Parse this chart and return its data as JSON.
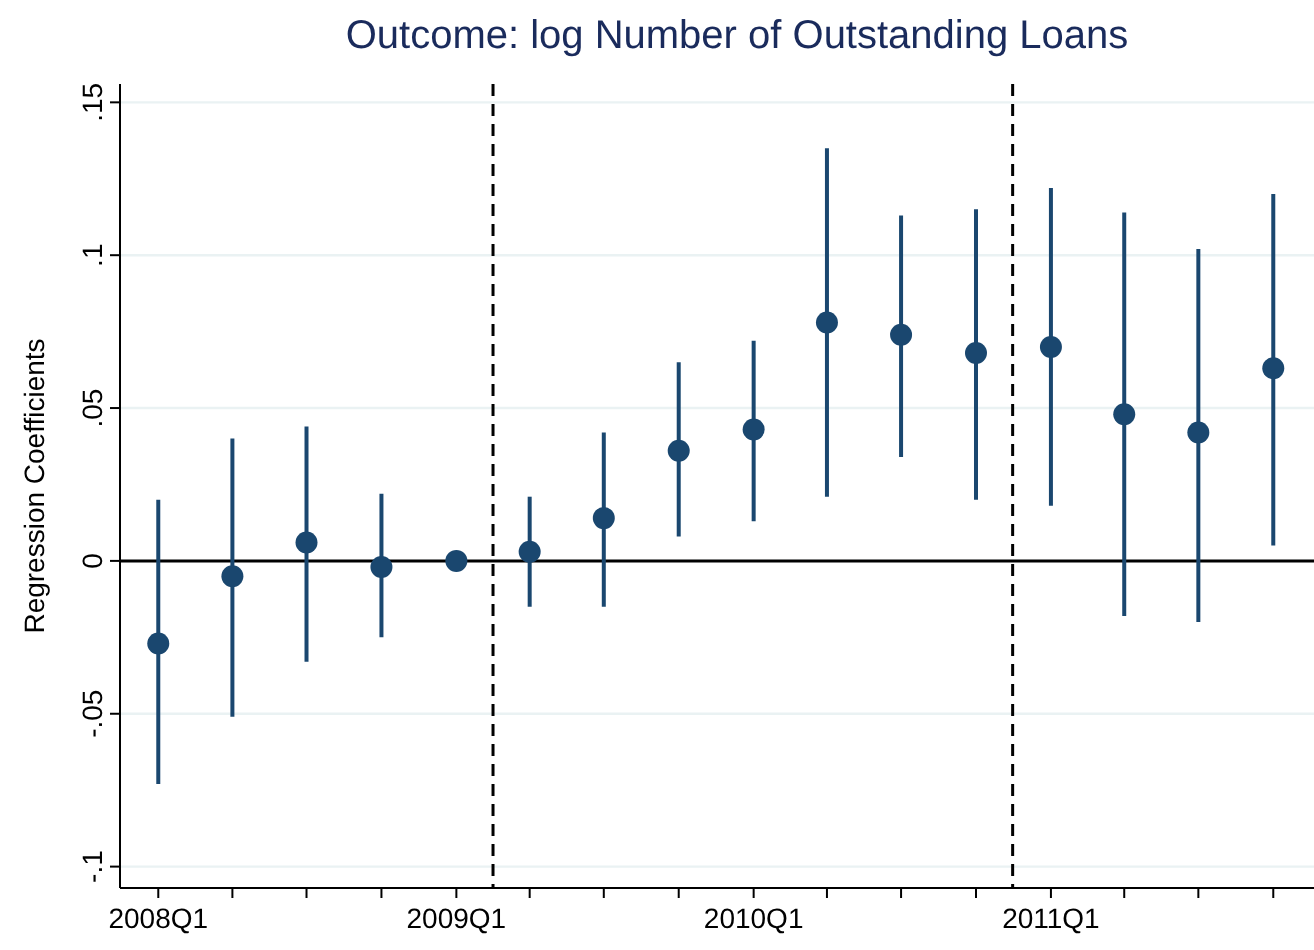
{
  "chart_data": {
    "type": "scatter",
    "title": "Outcome: log Number of Outstanding Loans",
    "ylabel": "Regression Coefficients",
    "x": [
      "2008-01-01",
      "2008-04-01",
      "2008-07-01",
      "2008-10-01",
      "2009-01-01",
      "2009-04-01",
      "2009-07-01",
      "2009-10-01",
      "2010-01-01",
      "2010-04-01",
      "2010-07-01",
      "2010-10-01",
      "2011-01-01",
      "2011-04-01",
      "2011-07-01",
      "2011-10-01"
    ],
    "series": [
      {
        "color": "#1a476f",
        "values": [
          -0.027,
          -0.005,
          0.006,
          -0.002,
          0,
          0.003,
          0.014,
          0.036,
          0.043,
          0.078,
          0.074,
          0.068,
          0.07,
          0.048,
          0.042,
          0.063
        ],
        "errors": [
          [
            -0.073,
            0.02
          ],
          [
            -0.051,
            0.04
          ],
          [
            -0.033,
            0.044
          ],
          [
            -0.025,
            0.022
          ],
          null,
          [
            -0.015,
            0.021
          ],
          [
            -0.015,
            0.042
          ],
          [
            0.008,
            0.065
          ],
          [
            0.013,
            0.072
          ],
          [
            0.021,
            0.135
          ],
          [
            0.034,
            0.113
          ],
          [
            0.02,
            0.115
          ],
          [
            0.018,
            0.122
          ],
          [
            -0.018,
            0.114
          ],
          [
            -0.02,
            0.102
          ],
          [
            0.005,
            0.12
          ]
        ]
      }
    ],
    "xlim": [
      "2007-11-15",
      "2011-11-20"
    ],
    "xticks": [
      {
        "value": "2008-01-01",
        "label": "2008Q1"
      },
      {
        "value": "2008-04-01",
        "label": null
      },
      {
        "value": "2008-07-01",
        "label": null
      },
      {
        "value": "2008-10-01",
        "label": null
      },
      {
        "value": "2009-01-01",
        "label": "2009Q1"
      },
      {
        "value": "2009-04-01",
        "label": null
      },
      {
        "value": "2009-07-01",
        "label": null
      },
      {
        "value": "2009-10-01",
        "label": null
      },
      {
        "value": "2010-01-01",
        "label": "2010Q1"
      },
      {
        "value": "2010-04-01",
        "label": null
      },
      {
        "value": "2010-07-01",
        "label": null
      },
      {
        "value": "2010-10-01",
        "label": null
      },
      {
        "value": "2011-01-01",
        "label": "2011Q1"
      },
      {
        "value": "2011-04-01",
        "label": null
      },
      {
        "value": "2011-07-01",
        "label": null
      },
      {
        "value": "2011-10-01",
        "label": null
      }
    ],
    "ylim": [
      -0.107,
      0.156
    ],
    "yticks": [
      {
        "value": -0.1,
        "label": "-.1"
      },
      {
        "value": -0.05,
        "label": "-.05"
      },
      {
        "value": 0,
        "label": "0"
      },
      {
        "value": 0.05,
        "label": ".05"
      },
      {
        "value": 0.1,
        "label": ".1"
      },
      {
        "value": 0.15,
        "label": ".15"
      }
    ],
    "ref_lines": [
      {
        "axis": "y",
        "value": 0,
        "color": "#000000",
        "line_style": "solid"
      },
      {
        "axis": "x",
        "value": "2009-02-15",
        "color": "#000000",
        "line_style": "dashed"
      },
      {
        "axis": "x",
        "value": "2010-11-15",
        "color": "#000000",
        "line_style": "dashed"
      }
    ],
    "grid": "y",
    "marker": "circle"
  }
}
